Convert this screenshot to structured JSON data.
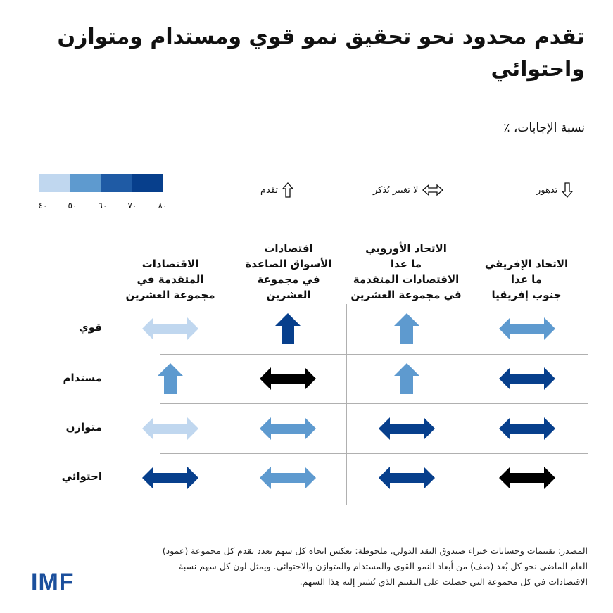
{
  "title": "تقدم محدود نحو تحقيق نمو قوي ومستدام ومتوازن واحتوائي",
  "subtitle": "نسبة الإجابات، ٪",
  "legend": {
    "scale_labels": [
      "٤٠",
      "٥٠",
      "٦٠",
      "٧٠",
      "٨٠"
    ],
    "scale_colors": [
      "#c0d7ef",
      "#5e9acf",
      "#1f5ba5",
      "#073f8c",
      "#000000"
    ],
    "items": [
      {
        "kind": "up",
        "label": "تقدم"
      },
      {
        "kind": "both",
        "label": "لا تغيير يُذكر"
      },
      {
        "kind": "down",
        "label": "تدهور"
      }
    ]
  },
  "chart_data": {
    "type": "table",
    "columns": [
      [
        "الاتحاد الإفريقي",
        "ما عدا",
        "جنوب إفريقيا"
      ],
      [
        "الاتحاد الأوروبي",
        "ما عدا",
        "الاقتصادات المتقدمة",
        "في مجموعة العشرين"
      ],
      [
        "اقتصادات",
        "الأسواق الصاعدة",
        "في مجموعة",
        "العشرين"
      ],
      [
        "الاقتصادات",
        "المتقدمة في",
        "مجموعة العشرين"
      ]
    ],
    "rows": [
      "قوي",
      "مستدام",
      "متوازن",
      "احتوائي"
    ],
    "cells": [
      [
        {
          "dir": "both",
          "pct": 50
        },
        {
          "dir": "up",
          "pct": 50
        },
        {
          "dir": "up",
          "pct": 70
        },
        {
          "dir": "both",
          "pct": 40
        }
      ],
      [
        {
          "dir": "both",
          "pct": 70
        },
        {
          "dir": "up",
          "pct": 50
        },
        {
          "dir": "both",
          "pct": 80
        },
        {
          "dir": "up",
          "pct": 50
        }
      ],
      [
        {
          "dir": "both",
          "pct": 70
        },
        {
          "dir": "both",
          "pct": 70
        },
        {
          "dir": "both",
          "pct": 50
        },
        {
          "dir": "both",
          "pct": 40
        }
      ],
      [
        {
          "dir": "both",
          "pct": 80
        },
        {
          "dir": "both",
          "pct": 70
        },
        {
          "dir": "both",
          "pct": 50
        },
        {
          "dir": "both",
          "pct": 70
        }
      ]
    ]
  },
  "source": [
    "المصدر: تقييمات وحسابات خبراء صندوق النقد الدولي. ملحوظة: يعكس اتجاه كل سهم تعدد تقدم كل مجموعة (عمود)",
    "العام الماضي نحو كل بُعد (صف) من أبعاد النمو القوي والمستدام والمتوازن والاحتوائي. ويمثل لون كل سهم نسبة",
    "الاقتصادات في كل مجموعة التي حصلت على التقييم الذي يُشير إليه هذا السهم."
  ],
  "logo": "IMF"
}
